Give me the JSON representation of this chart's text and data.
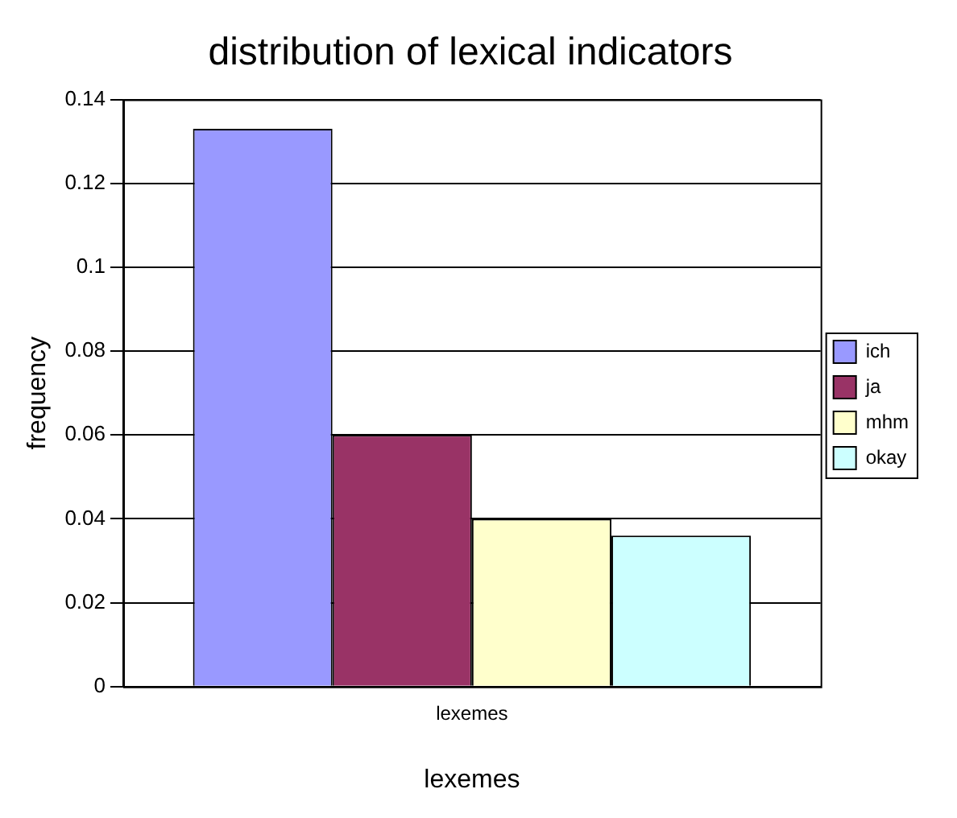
{
  "chart_data": {
    "type": "bar",
    "title": "distribution of lexical indicators",
    "xlabel": "lexemes",
    "ylabel": "frequency",
    "categories": [
      "lexemes"
    ],
    "series": [
      {
        "name": "ich",
        "color": "#9999ff",
        "values": [
          0.133
        ]
      },
      {
        "name": "ja",
        "color": "#993366",
        "values": [
          0.06
        ]
      },
      {
        "name": "mhm",
        "color": "#ffffcc",
        "values": [
          0.04
        ]
      },
      {
        "name": "okay",
        "color": "#ccffff",
        "values": [
          0.036
        ]
      }
    ],
    "ylim": [
      0,
      0.14
    ],
    "yticks": [
      0,
      0.02,
      0.04,
      0.06,
      0.08,
      0.1,
      0.12,
      0.14
    ],
    "grid": "y",
    "legend": "right"
  }
}
